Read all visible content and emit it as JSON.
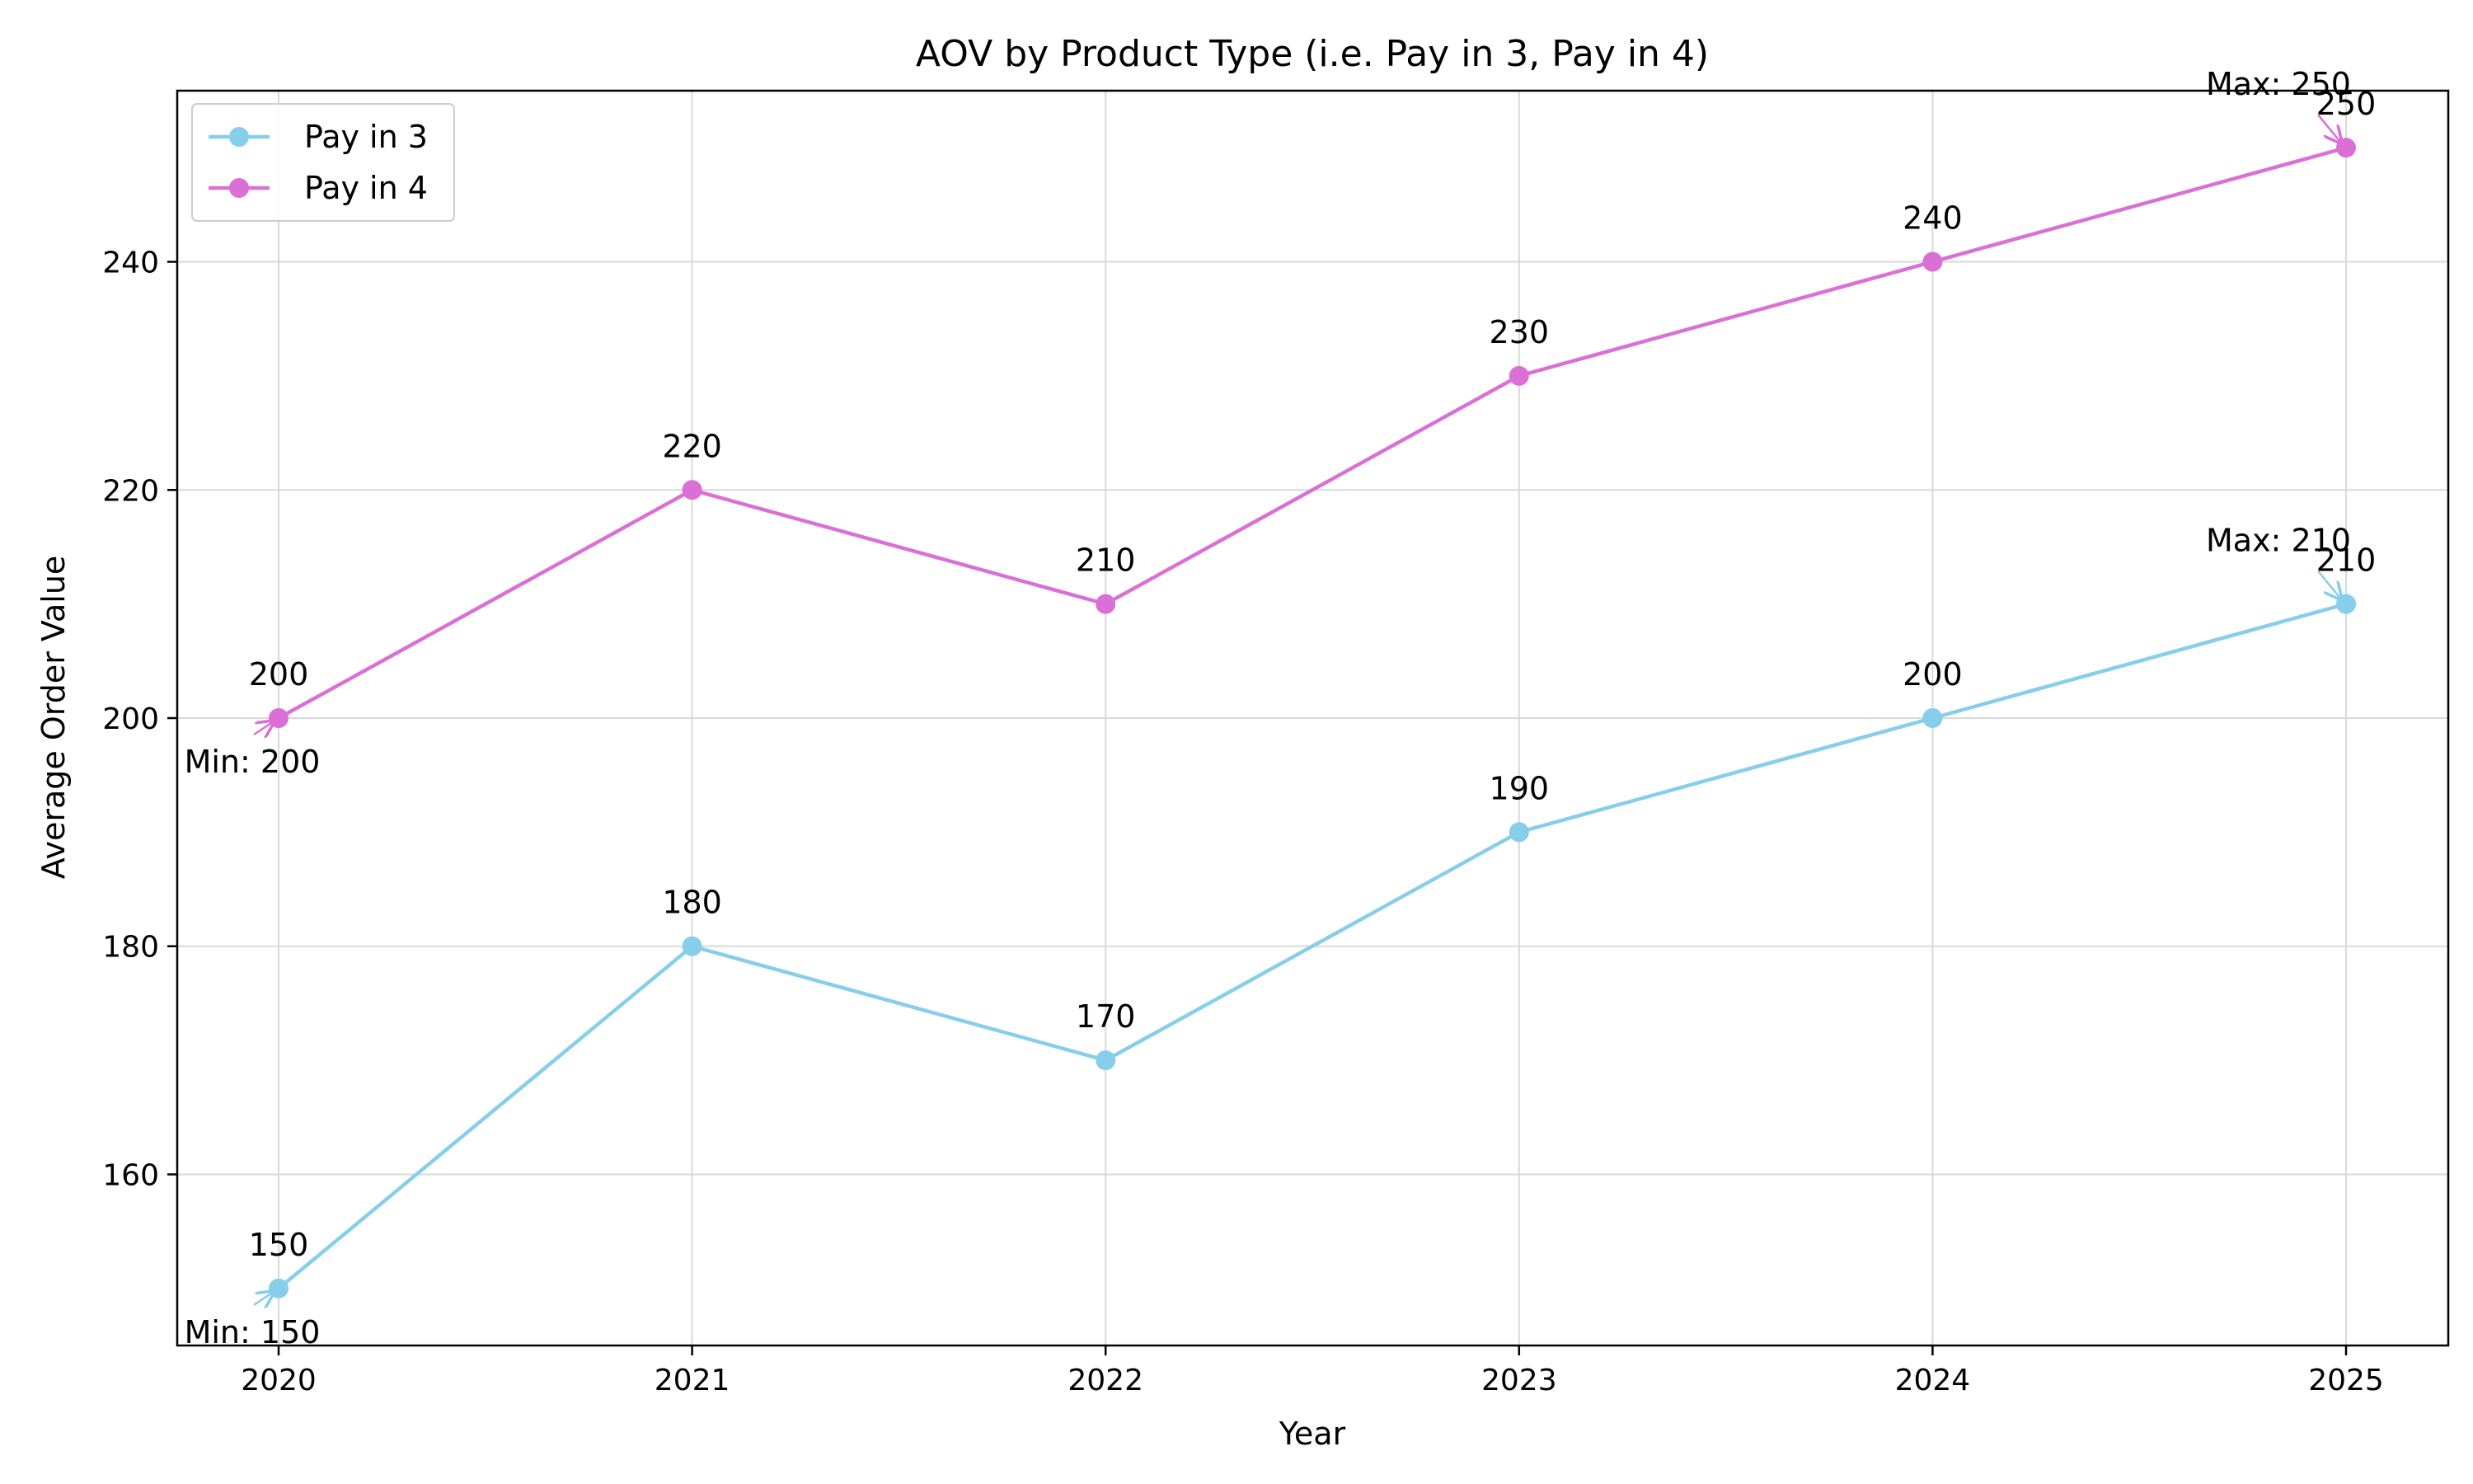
{
  "chart_data": {
    "type": "line",
    "title": "AOV by Product Type (i.e. Pay in 3, Pay in 4)",
    "xlabel": "Year",
    "ylabel": "Average Order Value",
    "categories": [
      "2020",
      "2021",
      "2022",
      "2023",
      "2024",
      "2025"
    ],
    "ylim": [
      145,
      255
    ],
    "yticks": [
      160,
      180,
      200,
      220,
      240
    ],
    "grid": true,
    "legend_position": "top-left",
    "series": [
      {
        "name": "Pay in 3",
        "values": [
          150,
          180,
          170,
          190,
          200,
          210
        ],
        "color": "#87ceeb",
        "min_annotation": "Min: 150",
        "max_annotation": "Max: 210"
      },
      {
        "name": "Pay in 4",
        "values": [
          200,
          220,
          210,
          230,
          240,
          250
        ],
        "color": "#da70d6",
        "min_annotation": "Min: 200",
        "max_annotation": "Max: 250"
      }
    ]
  }
}
